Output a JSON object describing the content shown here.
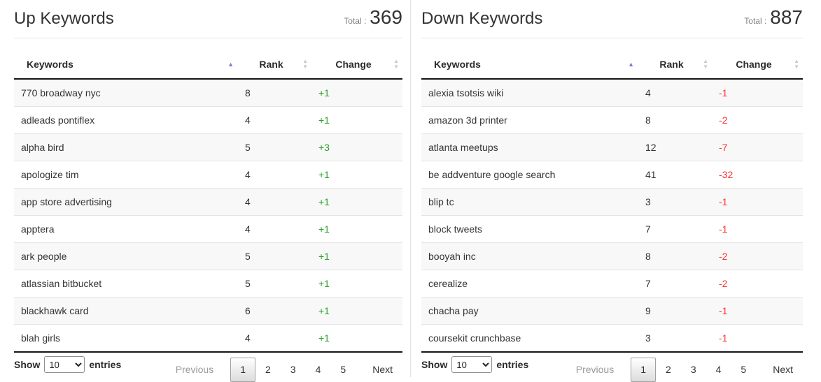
{
  "colors": {
    "positive_change": "#28a228",
    "negative_change": "#ff3232",
    "active_sort": "#7b7bd4",
    "inactive_sort": "#c9c9c9"
  },
  "icons": {
    "sort_ascending": "▲",
    "sort_up": "▲",
    "sort_down": "▼"
  },
  "panels": [
    {
      "id": "up",
      "title": "Up Keywords",
      "total_label": "Total :",
      "total_value": "369",
      "table": {
        "columns": [
          "Keywords",
          "Rank",
          "Change"
        ],
        "sorted_column": "Keywords",
        "sort_direction": "ascending",
        "rows": [
          {
            "keyword": "770 broadway nyc",
            "rank": "8",
            "change": "+1"
          },
          {
            "keyword": "adleads pontiflex",
            "rank": "4",
            "change": "+1"
          },
          {
            "keyword": "alpha bird",
            "rank": "5",
            "change": "+3"
          },
          {
            "keyword": "apologize tim",
            "rank": "4",
            "change": "+1"
          },
          {
            "keyword": "app store advertising",
            "rank": "4",
            "change": "+1"
          },
          {
            "keyword": "apptera",
            "rank": "4",
            "change": "+1"
          },
          {
            "keyword": "ark people",
            "rank": "5",
            "change": "+1"
          },
          {
            "keyword": "atlassian bitbucket",
            "rank": "5",
            "change": "+1"
          },
          {
            "keyword": "blackhawk card",
            "rank": "6",
            "change": "+1"
          },
          {
            "keyword": "blah girls",
            "rank": "4",
            "change": "+1"
          }
        ]
      },
      "controls": {
        "show_label": "Show",
        "page_size": "10",
        "entries_label": "entries",
        "pagination": {
          "previous": "Previous",
          "pages": [
            "1",
            "2",
            "3",
            "4",
            "5"
          ],
          "active_page": "1",
          "next": "Next"
        }
      }
    },
    {
      "id": "down",
      "title": "Down Keywords",
      "total_label": "Total :",
      "total_value": "887",
      "table": {
        "columns": [
          "Keywords",
          "Rank",
          "Change"
        ],
        "sorted_column": "Keywords",
        "sort_direction": "ascending",
        "rows": [
          {
            "keyword": "alexia tsotsis wiki",
            "rank": "4",
            "change": "-1"
          },
          {
            "keyword": "amazon 3d printer",
            "rank": "8",
            "change": "-2"
          },
          {
            "keyword": "atlanta meetups",
            "rank": "12",
            "change": "-7"
          },
          {
            "keyword": "be addventure google search",
            "rank": "41",
            "change": "-32"
          },
          {
            "keyword": "blip tc",
            "rank": "3",
            "change": "-1"
          },
          {
            "keyword": "block tweets",
            "rank": "7",
            "change": "-1"
          },
          {
            "keyword": "booyah inc",
            "rank": "8",
            "change": "-2"
          },
          {
            "keyword": "cerealize",
            "rank": "7",
            "change": "-2"
          },
          {
            "keyword": "chacha pay",
            "rank": "9",
            "change": "-1"
          },
          {
            "keyword": "coursekit crunchbase",
            "rank": "3",
            "change": "-1"
          }
        ]
      },
      "controls": {
        "show_label": "Show",
        "page_size": "10",
        "entries_label": "entries",
        "pagination": {
          "previous": "Previous",
          "pages": [
            "1",
            "2",
            "3",
            "4",
            "5"
          ],
          "active_page": "1",
          "next": "Next"
        }
      }
    }
  ]
}
